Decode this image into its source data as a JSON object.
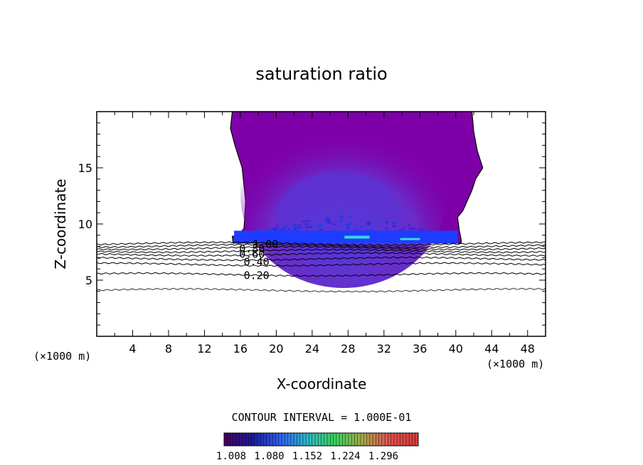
{
  "chart_data": {
    "type": "contour",
    "title": "saturation ratio",
    "xlabel": "X-coordinate",
    "ylabel": "Z-coordinate",
    "x_unit_left": "(×1000 m)",
    "x_unit_right": "(×1000 m)",
    "xlim": [
      0,
      50
    ],
    "ylim": [
      0,
      20
    ],
    "x_ticks": [
      4,
      8,
      12,
      16,
      20,
      24,
      28,
      32,
      36,
      40,
      44,
      48
    ],
    "y_ticks": [
      5,
      10,
      15
    ],
    "contour_interval_text": "CONTOUR INTERVAL = 1.000E-01",
    "contour_labels": [
      {
        "text": "0.20",
        "x": 17.8,
        "z": 5.4
      },
      {
        "text": "0.40",
        "x": 17.8,
        "z": 6.6
      },
      {
        "text": "0.60",
        "x": 17.3,
        "z": 7.3
      },
      {
        "text": "0.80",
        "x": 17.3,
        "z": 7.8
      },
      {
        "text": "1.00",
        "x": 18.8,
        "z": 8.2
      }
    ],
    "contour_lines_z": [
      4.1,
      5.5,
      6.4,
      6.9,
      7.3,
      7.6,
      7.85,
      8.05,
      8.25
    ],
    "cloud": {
      "base_z": 8.3,
      "top_z": 20,
      "x_range": [
        14.8,
        40.8
      ],
      "fill_color": "#7e00a8",
      "inner_colors": [
        "#6a2cc8",
        "#5535d9",
        "#2a40f0"
      ],
      "base_band_color": "#1e3cff",
      "hotspot_color": "#38d8d8"
    },
    "colorbar": {
      "tick_labels": [
        "1.008",
        "1.080",
        "1.152",
        "1.224",
        "1.296"
      ],
      "colors": [
        "#4b0060",
        "#1a1a9c",
        "#2f5ff0",
        "#2fb8c8",
        "#3ad45c",
        "#a8a84a",
        "#e05050",
        "#d83a3a"
      ]
    }
  }
}
